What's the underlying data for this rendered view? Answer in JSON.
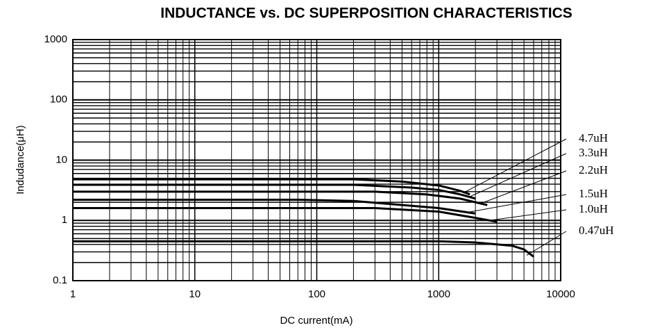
{
  "chart_data": {
    "type": "line",
    "title": "INDUCTANCE vs. DC SUPERPOSITION CHARACTERISTICS",
    "x_label": "DC current(mA)",
    "y_label": "Indudance(μH)",
    "x_scale": "log",
    "y_scale": "log",
    "grid": true,
    "xlim": [
      1,
      10000
    ],
    "ylim": [
      0.1,
      1000
    ],
    "xticks": [
      1,
      10,
      100,
      1000,
      10000
    ],
    "yticks": [
      0.1,
      1,
      10,
      100,
      1000
    ],
    "series": [
      {
        "name": "4.7uH",
        "color": "#000000",
        "x": [
          1,
          200,
          500,
          1000,
          1500,
          1800
        ],
        "values": [
          4.8,
          4.8,
          4.4,
          3.8,
          3.1,
          2.7
        ]
      },
      {
        "name": "3.3uH",
        "color": "#000000",
        "x": [
          1,
          200,
          600,
          1000,
          1500,
          2000
        ],
        "values": [
          3.9,
          3.9,
          3.5,
          3.2,
          2.7,
          2.3
        ]
      },
      {
        "name": "2.2uH",
        "color": "#000000",
        "x": [
          1,
          300,
          800,
          1500,
          2000,
          2500
        ],
        "values": [
          3.0,
          3.0,
          2.7,
          2.3,
          2.0,
          1.8
        ]
      },
      {
        "name": "1.5uH",
        "color": "#000000",
        "x": [
          1,
          70,
          200,
          1000,
          2000
        ],
        "values": [
          2.2,
          2.2,
          2.1,
          1.6,
          1.3
        ]
      },
      {
        "name": "1.0uH",
        "color": "#000000",
        "x": [
          1,
          300,
          1000,
          2000,
          3000
        ],
        "values": [
          1.6,
          1.6,
          1.4,
          1.1,
          0.95
        ]
      },
      {
        "name": "0.47uH",
        "color": "#000000",
        "x": [
          1,
          1000,
          2000,
          4000,
          5000,
          6000
        ],
        "values": [
          0.45,
          0.45,
          0.43,
          0.38,
          0.33,
          0.25
        ]
      }
    ]
  }
}
